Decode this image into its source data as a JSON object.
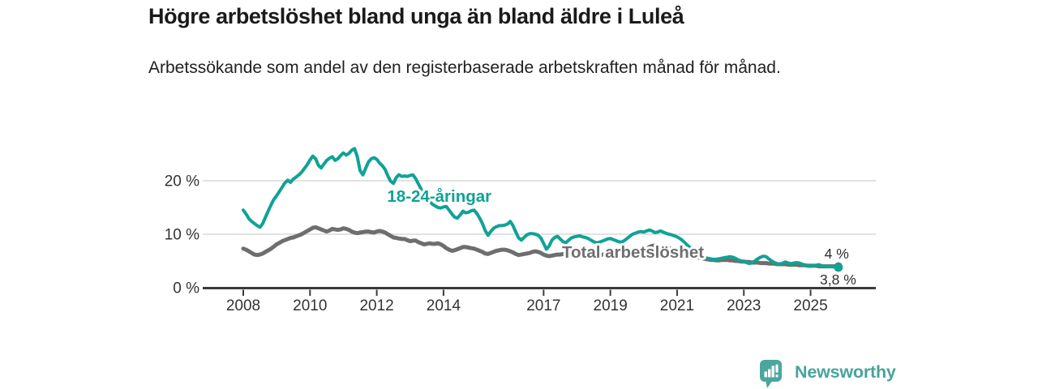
{
  "chart_data": {
    "type": "line",
    "title": "Högre arbetslöshet bland unga än bland äldre i Luleå",
    "subtitle": "Arbetssökande som andel av den registerbaserade arbetskraften månad för månad.",
    "xlabel": "",
    "ylabel": "",
    "unit": "%",
    "grid": "horizontal",
    "x_axis": {
      "ticks": [
        2008,
        2010,
        2012,
        2014,
        2017,
        2019,
        2021,
        2023,
        2025
      ]
    },
    "y_axis": {
      "ticks": [
        {
          "value": 0,
          "label": "0 %"
        },
        {
          "value": 10,
          "label": "10 %"
        },
        {
          "value": 20,
          "label": "20 %"
        }
      ],
      "ylim": [
        0,
        26.5
      ]
    },
    "annotations": [
      {
        "text": "18-24-åringar",
        "year": 2012.31,
        "value": 16.05,
        "color": "#10a296"
      },
      {
        "text": "Total arbetslöshet",
        "year": 2017.55,
        "value": 5.6,
        "color": "#6f6f6f"
      }
    ],
    "series": [
      {
        "name": "18-24-åringar",
        "color": "#10a296",
        "line_width": 4,
        "end_label": "3,8 %",
        "end_value": 3.8,
        "start_year": 2008,
        "step_months": 1,
        "values": [
          14.5,
          13.8,
          12.9,
          12.4,
          12.0,
          11.6,
          11.3,
          12.0,
          13.2,
          14.4,
          15.5,
          16.5,
          17.2,
          18.0,
          18.8,
          19.6,
          20.1,
          19.7,
          20.3,
          20.7,
          21.1,
          21.6,
          22.3,
          23.0,
          23.9,
          24.6,
          24.1,
          22.9,
          22.4,
          23.1,
          23.8,
          24.2,
          24.5,
          23.8,
          24.1,
          24.7,
          25.2,
          24.8,
          25.1,
          25.7,
          26.0,
          24.5,
          21.9,
          21.1,
          22.3,
          23.5,
          24.1,
          24.3,
          24.0,
          23.3,
          22.8,
          22.1,
          20.9,
          19.9,
          19.5,
          20.6,
          21.1,
          20.8,
          20.9,
          20.8,
          21.0,
          21.1,
          20.4,
          19.4,
          18.4,
          17.5,
          16.7,
          16.1,
          15.6,
          15.3,
          15.0,
          14.9,
          15.1,
          15.2,
          14.5,
          13.8,
          13.2,
          13.0,
          13.6,
          14.3,
          14.0,
          14.1,
          14.4,
          14.5,
          13.9,
          13.0,
          12.0,
          10.7,
          9.8,
          10.5,
          11.1,
          11.4,
          11.6,
          11.6,
          11.7,
          11.9,
          12.4,
          11.6,
          10.4,
          9.3,
          8.9,
          9.4,
          9.9,
          10.1,
          10.1,
          10.0,
          9.8,
          9.3,
          8.3,
          7.2,
          7.8,
          8.9,
          9.4,
          9.6,
          9.1,
          8.6,
          8.4,
          8.9,
          9.3,
          9.5,
          9.6,
          9.7,
          9.5,
          9.4,
          9.2,
          8.9,
          8.6,
          8.4,
          8.5,
          8.7,
          8.9,
          9.1,
          9.2,
          9.0,
          8.8,
          8.6,
          8.5,
          8.8,
          9.2,
          9.6,
          10.0,
          10.2,
          10.4,
          10.5,
          10.4,
          10.6,
          10.8,
          10.6,
          10.3,
          10.4,
          10.6,
          10.4,
          10.2,
          10.0,
          9.9,
          9.7,
          9.5,
          9.2,
          8.8,
          8.3,
          7.8,
          7.3,
          6.8,
          6.4,
          6.1,
          5.8,
          5.6,
          5.5,
          5.4,
          5.3,
          5.3,
          5.4,
          5.5,
          5.6,
          5.7,
          5.8,
          5.7,
          5.5,
          5.2,
          5.0,
          4.9,
          4.7,
          4.5,
          4.7,
          5.0,
          5.4,
          5.7,
          5.9,
          5.8,
          5.4,
          5.0,
          4.7,
          4.5,
          4.4,
          4.6,
          4.8,
          4.6,
          4.5,
          4.6,
          4.7,
          4.6,
          4.4,
          4.2,
          4.1,
          4.0,
          4.1,
          4.2,
          4.3,
          4.1,
          3.9,
          4.0,
          4.0,
          3.9,
          3.9,
          3.8
        ]
      },
      {
        "name": "Total arbetslöshet",
        "color": "#6e6e6e",
        "line_width": 5,
        "end_label": "4 %",
        "end_value": 4.0,
        "start_year": 2008,
        "step_months": 1,
        "values": [
          7.3,
          7.1,
          6.8,
          6.5,
          6.2,
          6.1,
          6.2,
          6.4,
          6.7,
          7.0,
          7.3,
          7.7,
          8.1,
          8.4,
          8.7,
          8.9,
          9.1,
          9.3,
          9.4,
          9.6,
          9.8,
          10.0,
          10.3,
          10.6,
          10.9,
          11.2,
          11.3,
          11.1,
          10.9,
          10.7,
          10.5,
          10.7,
          11.0,
          10.9,
          10.8,
          10.9,
          11.1,
          11.0,
          10.8,
          10.5,
          10.3,
          10.2,
          10.3,
          10.4,
          10.5,
          10.5,
          10.4,
          10.3,
          10.5,
          10.6,
          10.5,
          10.3,
          10.0,
          9.7,
          9.4,
          9.3,
          9.2,
          9.1,
          9.1,
          8.9,
          8.7,
          8.8,
          8.8,
          8.5,
          8.3,
          8.1,
          8.2,
          8.3,
          8.2,
          8.2,
          8.3,
          8.1,
          7.8,
          7.4,
          7.1,
          6.9,
          7.0,
          7.2,
          7.4,
          7.6,
          7.6,
          7.5,
          7.4,
          7.3,
          7.1,
          6.9,
          6.7,
          6.4,
          6.3,
          6.5,
          6.7,
          6.9,
          7.0,
          7.1,
          7.1,
          7.0,
          6.8,
          6.6,
          6.3,
          6.1,
          6.2,
          6.3,
          6.4,
          6.5,
          6.7,
          6.8,
          6.7,
          6.5,
          6.2,
          6.0,
          5.9,
          6.0,
          6.1,
          6.2,
          6.2,
          6.3,
          6.3,
          6.4,
          6.4,
          6.5,
          6.5,
          6.4,
          6.4,
          6.3,
          6.3,
          6.2,
          6.2,
          6.1,
          6.1,
          6.2,
          6.2,
          6.2,
          6.1,
          6.1,
          6.0,
          6.0,
          6.1,
          6.1,
          6.2,
          6.3,
          6.4,
          6.5,
          6.6,
          6.7,
          6.9,
          7.2,
          7.6,
          7.8,
          7.9,
          7.8,
          7.7,
          7.6,
          7.5,
          7.4,
          7.2,
          7.1,
          7.0,
          6.8,
          6.6,
          6.4,
          6.2,
          6.0,
          5.8,
          5.7,
          5.6,
          5.5,
          5.4,
          5.3,
          5.2,
          5.2,
          5.1,
          5.1,
          5.2,
          5.2,
          5.2,
          5.1,
          5.1,
          5.0,
          5.0,
          4.9,
          4.9,
          4.8,
          4.8,
          4.7,
          4.7,
          4.7,
          4.6,
          4.6,
          4.6,
          4.5,
          4.5,
          4.5,
          4.4,
          4.4,
          4.4,
          4.4,
          4.3,
          4.3,
          4.3,
          4.3,
          4.2,
          4.2,
          4.2,
          4.1,
          4.1,
          4.1,
          4.1,
          4.0,
          4.0,
          4.0,
          4.0,
          4.0,
          4.0,
          4.0,
          4.0
        ]
      }
    ],
    "colors": {
      "grid": "#d9d9d9",
      "axis": "#3a3a3a",
      "tick_text": "#333333",
      "end_label_text": "#2f2f2f"
    }
  },
  "footer": {
    "brand": "Newsworthy",
    "brand_color": "#46a49c"
  }
}
